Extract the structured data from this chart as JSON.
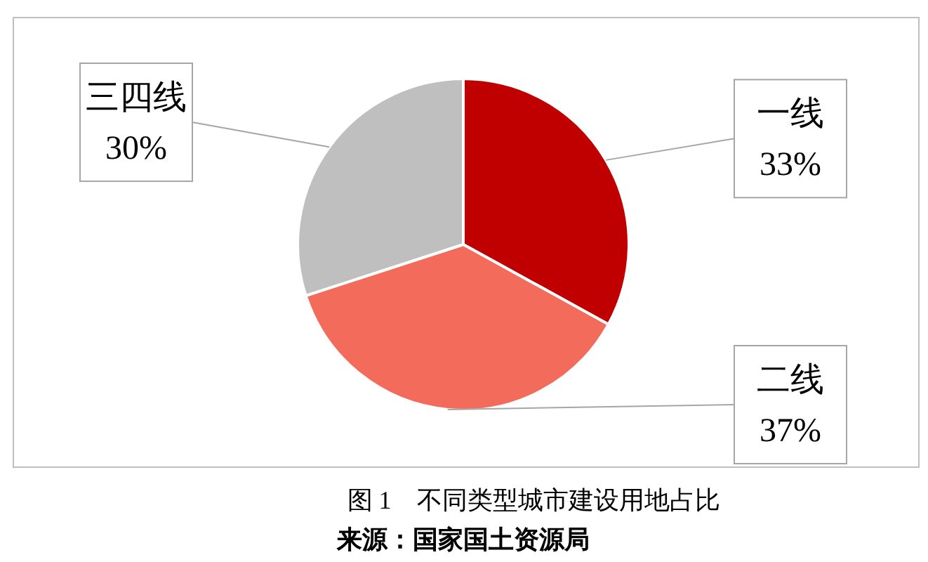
{
  "chart_data": {
    "type": "pie",
    "title": "图 1　不同类型城市建设用地占比",
    "categories": [
      "一线",
      "二线",
      "三四线"
    ],
    "values": [
      33,
      37,
      30
    ],
    "colors": [
      "#c00000",
      "#f26b5b",
      "#bfbfbf"
    ],
    "value_labels": [
      "33%",
      "37%",
      "30%"
    ],
    "annotations": [
      "来源：国家国土资源局"
    ]
  }
}
